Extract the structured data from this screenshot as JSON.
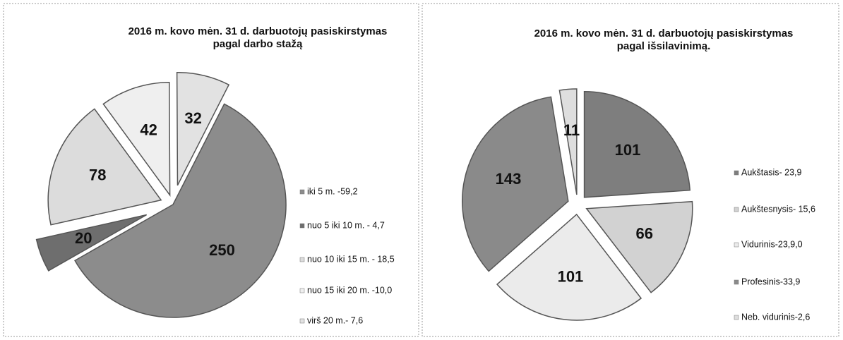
{
  "chart_data": [
    {
      "type": "pie",
      "title": [
        "2016 m. kovo mėn. 31 d. darbuotojų pasiskirstymas",
        "pagal darbo stažą"
      ],
      "categories": [
        "iki 5 m. -59,2",
        "nuo 5 iki 10 m. - 4,7",
        "nuo 10 iki 15 m. - 18,5",
        "nuo 15 iki 20 m. -10,0",
        "virš 20 m.- 7,6"
      ],
      "values": [
        250,
        20,
        78,
        42,
        32
      ],
      "colors": [
        "#8c8c8c",
        "#6e6e6e",
        "#dcdcdc",
        "#efefef",
        "#e2e2e2"
      ]
    },
    {
      "type": "pie",
      "title": [
        "2016 m. kovo mėn. 31 d.   darbuotojų pasiskirstymas",
        "pagal išsilavinimą."
      ],
      "categories": [
        "Aukštasis- 23,9",
        "Aukštesnysis- 15,6",
        "Vidurinis-23,9,0",
        "Profesinis-33,9",
        "Neb. vidurinis-2,6"
      ],
      "values": [
        101,
        66,
        101,
        143,
        11
      ],
      "colors": [
        "#7e7e7e",
        "#d2d2d2",
        "#ebebeb",
        "#8a8a8a",
        "#dedede"
      ]
    }
  ]
}
